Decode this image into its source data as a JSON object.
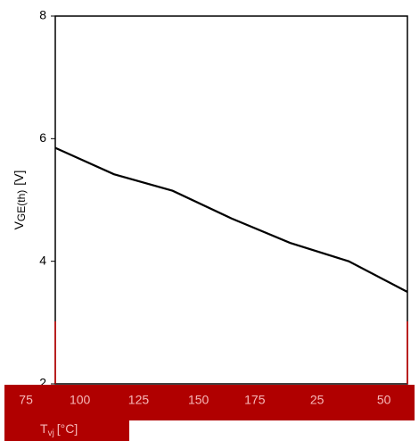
{
  "chart_data": {
    "type": "line",
    "xlabel": "T",
    "xlabel_sub": "vj",
    "xlabel_unit": "[°C]",
    "ylabel": "V",
    "ylabel_sub": "GE(th)",
    "ylabel_unit": "[V]",
    "x": [
      0,
      50,
      100,
      150,
      200,
      250,
      300
    ],
    "series": [
      {
        "name": "VGE(th)",
        "color": "#000000",
        "values": [
          5.85,
          5.42,
          5.15,
          4.7,
          4.3,
          4.0,
          3.5
        ]
      }
    ],
    "xlim": [
      0,
      300
    ],
    "xticks": [
      {
        "value": -25,
        "label": "75"
      },
      {
        "value": 21,
        "label": "100"
      },
      {
        "value": 71,
        "label": "125"
      },
      {
        "value": 122,
        "label": "150"
      },
      {
        "value": 170,
        "label": "175"
      },
      {
        "value": 223,
        "label": "25"
      },
      {
        "value": 280,
        "label": "50"
      }
    ],
    "xgrid_major": [
      50,
      100,
      150,
      200,
      250
    ],
    "xgrid_minor": [
      25,
      75,
      125,
      175,
      225,
      275
    ],
    "ylim": [
      2,
      8
    ],
    "yticks": [
      2,
      4,
      6,
      8
    ],
    "ygrid_minor": [
      3,
      5,
      7
    ],
    "grid": true
  }
}
